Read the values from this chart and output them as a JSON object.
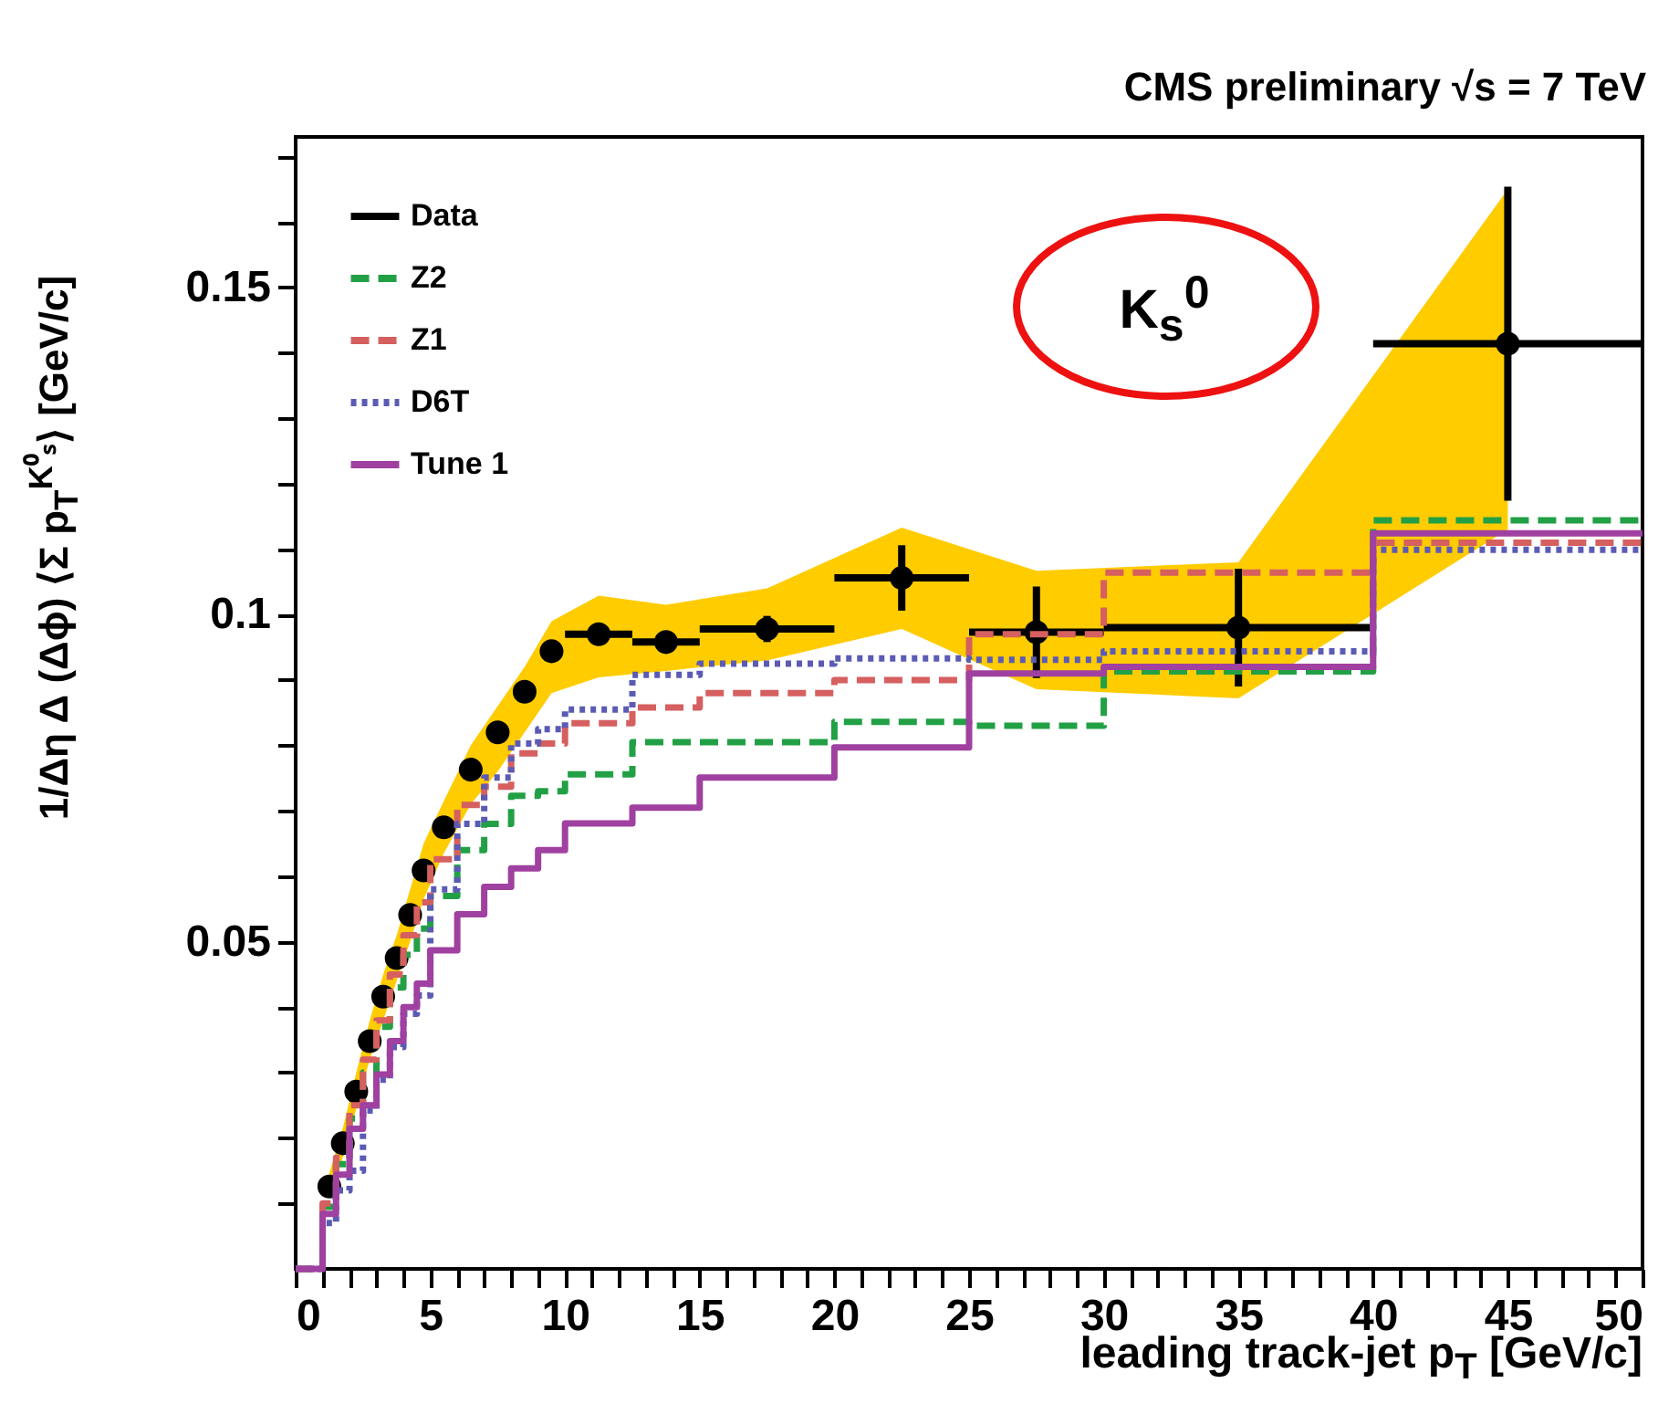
{
  "chart_data": {
    "type": "step",
    "title": "CMS preliminary  √s = 7 TeV",
    "xlabel": "leading track-jet p$_{T}$ [GeV/c]",
    "ylabel": "1/Δη Δ (Δϕ) ⟨Σ p$_{T}$$^{K⁰ₛ}$⟩ [GeV/c]",
    "annotations": [
      "K$_{s}$$^{0}$"
    ],
    "xlim": [
      0,
      50
    ],
    "xticks": [
      0,
      {
        "value": 1,
        "label": null
      },
      {
        "value": 2,
        "label": null
      },
      {
        "value": 3,
        "label": null
      },
      {
        "value": 4,
        "label": null
      },
      5,
      {
        "value": 6,
        "label": null
      },
      {
        "value": 7,
        "label": null
      },
      {
        "value": 8,
        "label": null
      },
      {
        "value": 9,
        "label": null
      },
      10,
      {
        "value": 11,
        "label": null
      },
      {
        "value": 12,
        "label": null
      },
      {
        "value": 13,
        "label": null
      },
      {
        "value": 14,
        "label": null
      },
      15,
      {
        "value": 16,
        "label": null
      },
      {
        "value": 17,
        "label": null
      },
      {
        "value": 18,
        "label": null
      },
      {
        "value": 19,
        "label": null
      },
      20,
      {
        "value": 21,
        "label": null
      },
      {
        "value": 22,
        "label": null
      },
      {
        "value": 23,
        "label": null
      },
      {
        "value": 24,
        "label": null
      },
      25,
      {
        "value": 26,
        "label": null
      },
      {
        "value": 27,
        "label": null
      },
      {
        "value": 28,
        "label": null
      },
      {
        "value": 29,
        "label": null
      },
      30,
      {
        "value": 31,
        "label": null
      },
      {
        "value": 32,
        "label": null
      },
      {
        "value": 33,
        "label": null
      },
      {
        "value": 34,
        "label": null
      },
      35,
      {
        "value": 36,
        "label": null
      },
      {
        "value": 37,
        "label": null
      },
      {
        "value": 38,
        "label": null
      },
      {
        "value": 39,
        "label": null
      },
      40,
      {
        "value": 41,
        "label": null
      },
      {
        "value": 42,
        "label": null
      },
      {
        "value": 43,
        "label": null
      },
      {
        "value": 44,
        "label": null
      },
      45,
      {
        "value": 46,
        "label": null
      },
      {
        "value": 47,
        "label": null
      },
      {
        "value": 48,
        "label": null
      },
      {
        "value": 49,
        "label": null
      },
      50
    ],
    "ylim": [
      0,
      0.173
    ],
    "yticks": [
      {
        "value": 0.01,
        "label": null
      },
      {
        "value": 0.02,
        "label": null
      },
      {
        "value": 0.03,
        "label": null
      },
      {
        "value": 0.04,
        "label": null
      },
      0.05,
      {
        "value": 0.06,
        "label": null
      },
      {
        "value": 0.07,
        "label": null
      },
      {
        "value": 0.08,
        "label": null
      },
      {
        "value": 0.09,
        "label": null
      },
      0.1,
      {
        "value": 0.11,
        "label": null
      },
      {
        "value": 0.12,
        "label": null
      },
      {
        "value": 0.13,
        "label": null
      },
      {
        "value": 0.14,
        "label": null
      },
      0.15,
      {
        "value": 0.16,
        "label": null
      },
      {
        "value": 0.17,
        "label": null
      }
    ],
    "legend": "top left",
    "series": [
      {
        "name": "Data",
        "type": "scatter",
        "marker": "circle",
        "color": "#000000",
        "x": [
          1.25,
          1.75,
          2.25,
          2.75,
          3.25,
          3.75,
          4.25,
          4.75,
          5.5,
          6.5,
          7.5,
          8.5,
          9.5,
          11.25,
          13.75,
          17.5,
          22.5,
          27.5,
          35,
          45
        ],
        "values": [
          0.0126,
          0.0192,
          0.0271,
          0.0348,
          0.0416,
          0.0475,
          0.0541,
          0.0609,
          0.0675,
          0.0763,
          0.082,
          0.0882,
          0.0944,
          0.097,
          0.0958,
          0.0978,
          0.1056,
          0.0973,
          0.098,
          0.1414
        ],
        "errors": [
          null,
          null,
          null,
          null,
          null,
          null,
          null,
          null,
          null,
          null,
          null,
          null,
          null,
          null,
          null,
          0.002,
          0.005,
          0.007,
          0.009,
          0.024
        ],
        "xerrors": [
          null,
          null,
          null,
          null,
          null,
          null,
          null,
          null,
          null,
          null,
          null,
          null,
          null,
          1.25,
          1.25,
          2.5,
          2.5,
          2.5,
          5,
          5
        ],
        "lower": [
          0.0106,
          0.017,
          0.0245,
          0.032,
          0.038,
          0.044,
          0.05,
          0.0565,
          0.0635,
          0.071,
          0.076,
          0.082,
          0.088,
          0.0904,
          0.0914,
          0.093,
          0.0978,
          0.0886,
          0.0872,
          0.113
        ],
        "upper": [
          0.0146,
          0.0215,
          0.03,
          0.038,
          0.045,
          0.051,
          0.058,
          0.065,
          0.0715,
          0.08,
          0.086,
          0.092,
          0.099,
          0.1029,
          0.1015,
          0.104,
          0.1133,
          0.1067,
          0.108,
          0.165
        ]
      },
      {
        "name": "Z2",
        "line_style": "dashed",
        "color": "#22a045",
        "x": [
          0,
          1,
          1.5,
          2,
          2.5,
          3,
          3.5,
          4,
          4.5,
          5,
          6,
          7,
          8,
          9,
          10,
          12.5,
          15,
          20,
          25,
          30,
          40,
          50
        ],
        "values": [
          0,
          0.0095,
          0.016,
          0.023,
          0.03,
          0.037,
          0.043,
          0.048,
          0.052,
          0.057,
          0.064,
          0.068,
          0.0723,
          0.073,
          0.0756,
          0.0805,
          0.0805,
          0.0836,
          0.083,
          0.0913,
          0.1144,
          0.1144
        ]
      },
      {
        "name": "Z1",
        "line_style": "dashed",
        "color": "#d65f5f",
        "x": [
          0,
          1,
          1.5,
          2,
          2.5,
          3,
          3.5,
          4,
          4.5,
          5,
          6,
          7,
          8,
          9,
          10,
          12.5,
          15,
          20,
          25,
          30,
          40,
          50
        ],
        "values": [
          0,
          0.01,
          0.017,
          0.025,
          0.032,
          0.038,
          0.045,
          0.051,
          0.056,
          0.0626,
          0.0709,
          0.0737,
          0.0788,
          0.0803,
          0.0834,
          0.0858,
          0.088,
          0.09,
          0.097,
          0.1064,
          0.111,
          0.111
        ]
      },
      {
        "name": "D6T",
        "line_style": "dotted",
        "color": "#5b5bb5",
        "x": [
          0,
          1,
          1.5,
          2,
          2.5,
          3,
          3.5,
          4,
          4.5,
          5,
          6,
          7,
          8,
          9,
          10,
          12.5,
          15,
          20,
          25,
          30,
          40,
          50
        ],
        "values": [
          0,
          0.007,
          0.012,
          0.015,
          0.0242,
          0.0289,
          0.0339,
          0.039,
          0.0418,
          0.058,
          0.068,
          0.0751,
          0.0803,
          0.0825,
          0.0855,
          0.0908,
          0.0925,
          0.0933,
          0.0931,
          0.0944,
          0.1099,
          0.1099
        ]
      },
      {
        "name": "Tune 1",
        "line_style": "solid",
        "color": "#a040a0",
        "x": [
          0,
          1,
          1.5,
          2,
          2.5,
          3,
          3.5,
          4,
          4.5,
          5,
          6,
          7,
          8,
          9,
          10,
          12.5,
          15,
          20,
          25,
          30,
          40,
          50
        ],
        "values": [
          0,
          0.0084,
          0.0144,
          0.0214,
          0.025,
          0.0297,
          0.0348,
          0.04,
          0.0436,
          0.0487,
          0.0542,
          0.0584,
          0.0612,
          0.064,
          0.0681,
          0.0705,
          0.0751,
          0.0797,
          0.091,
          0.092,
          0.1124,
          0.1124
        ]
      }
    ]
  }
}
